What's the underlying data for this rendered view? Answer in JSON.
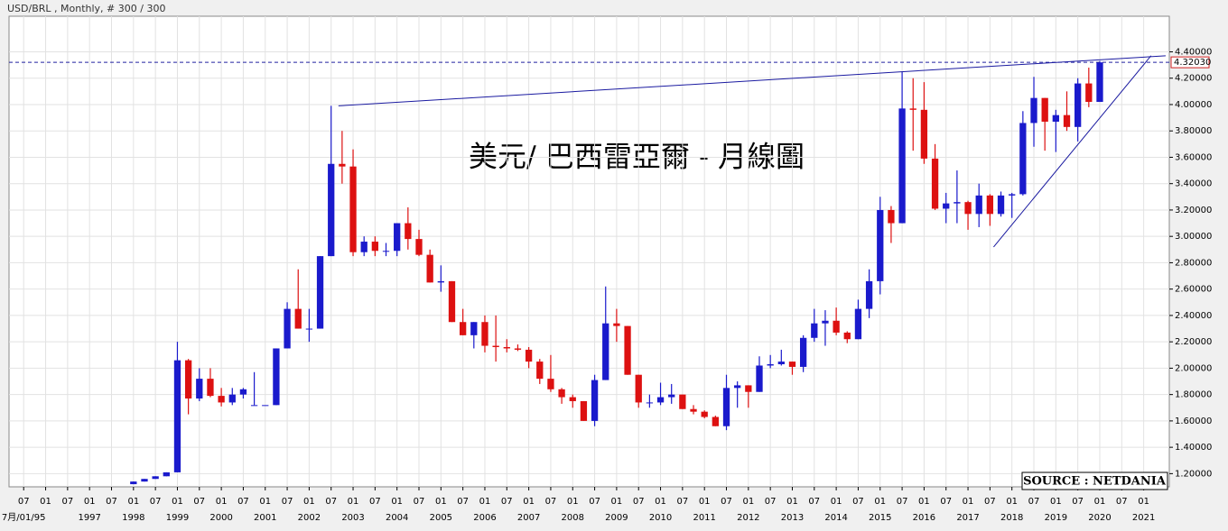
{
  "chart_data": {
    "type": "candlestick",
    "header": "USD/BRL , Monthly, # 300 / 300",
    "title": "美元/ 巴西雷亞爾 - 月線圖",
    "source": "SOURCE : NETDANIA",
    "up_color": "#1a1acc",
    "down_color": "#dd1111",
    "x": [
      "1998-01",
      "1998-04",
      "1998-07",
      "1998-10",
      "1999-01",
      "1999-04",
      "1999-07",
      "1999-10",
      "2000-01",
      "2000-04",
      "2000-07",
      "2000-10",
      "2001-01",
      "2001-04",
      "2001-07",
      "2001-10",
      "2002-01",
      "2002-04",
      "2002-07",
      "2002-10",
      "2003-01",
      "2003-04",
      "2003-07",
      "2003-10",
      "2004-01",
      "2004-04",
      "2004-07",
      "2004-10",
      "2005-01",
      "2005-04",
      "2005-07",
      "2005-10",
      "2006-01",
      "2006-04",
      "2006-07",
      "2006-10",
      "2007-01",
      "2007-04",
      "2007-07",
      "2007-10",
      "2008-01",
      "2008-04",
      "2008-07",
      "2008-10",
      "2009-01",
      "2009-04",
      "2009-07",
      "2009-10",
      "2010-01",
      "2010-04",
      "2010-07",
      "2010-10",
      "2011-01",
      "2011-04",
      "2011-07",
      "2011-10",
      "2012-01",
      "2012-04",
      "2012-07",
      "2012-10",
      "2013-01",
      "2013-04",
      "2013-07",
      "2013-10",
      "2014-01",
      "2014-04",
      "2014-07",
      "2014-10",
      "2015-01",
      "2015-04",
      "2015-07",
      "2015-10",
      "2016-01",
      "2016-04",
      "2016-07",
      "2016-10",
      "2017-01",
      "2017-04",
      "2017-07",
      "2017-10",
      "2018-01",
      "2018-04",
      "2018-07",
      "2018-10",
      "2019-01",
      "2019-04",
      "2019-07",
      "2019-10",
      "2020-01"
    ],
    "open": [
      1.12,
      1.14,
      1.16,
      1.18,
      1.21,
      2.06,
      1.77,
      1.92,
      1.79,
      1.74,
      1.8,
      1.72,
      1.72,
      1.72,
      2.15,
      2.45,
      2.3,
      2.3,
      2.85,
      3.55,
      3.53,
      2.88,
      2.96,
      2.89,
      2.89,
      3.1,
      2.98,
      2.86,
      2.65,
      2.66,
      2.35,
      2.25,
      2.35,
      2.17,
      2.16,
      2.15,
      2.14,
      2.05,
      1.92,
      1.84,
      1.78,
      1.75,
      1.6,
      1.91,
      2.34,
      2.32,
      1.95,
      1.74,
      1.74,
      1.78,
      1.8,
      1.69,
      1.67,
      1.63,
      1.56,
      1.85,
      1.87,
      1.82,
      2.02,
      2.03,
      2.05,
      2.01,
      2.23,
      2.34,
      2.36,
      2.27,
      2.22,
      2.45,
      2.66,
      3.2,
      3.1,
      3.97,
      3.96,
      3.59,
      3.21,
      3.25,
      3.26,
      3.17,
      3.31,
      3.17,
      3.31,
      3.32,
      3.86,
      4.05,
      3.87,
      3.92,
      3.83,
      4.16,
      4.02
    ],
    "high": [
      1.14,
      1.16,
      1.18,
      1.21,
      2.2,
      2.07,
      2.0,
      2.0,
      1.85,
      1.85,
      1.85,
      1.97,
      1.72,
      2.15,
      2.5,
      2.75,
      2.45,
      2.85,
      3.99,
      3.8,
      3.66,
      3.0,
      3.0,
      2.95,
      3.1,
      3.22,
      3.05,
      2.9,
      2.78,
      2.66,
      2.45,
      2.35,
      2.4,
      2.4,
      2.22,
      2.18,
      2.16,
      2.07,
      2.1,
      1.85,
      1.8,
      1.75,
      1.95,
      2.62,
      2.45,
      2.32,
      1.95,
      1.8,
      1.89,
      1.88,
      1.8,
      1.72,
      1.68,
      1.64,
      1.95,
      1.9,
      1.87,
      2.09,
      2.1,
      2.14,
      2.05,
      2.25,
      2.45,
      2.44,
      2.46,
      2.28,
      2.52,
      2.75,
      3.3,
      3.23,
      4.25,
      4.2,
      4.17,
      3.7,
      3.33,
      3.5,
      3.27,
      3.4,
      3.32,
      3.34,
      3.33,
      3.95,
      4.21,
      4.05,
      3.96,
      4.1,
      4.2,
      4.28,
      4.33
    ],
    "low": [
      1.12,
      1.14,
      1.16,
      1.18,
      1.21,
      1.65,
      1.75,
      1.78,
      1.71,
      1.72,
      1.77,
      1.72,
      1.72,
      1.72,
      2.15,
      2.3,
      2.2,
      2.3,
      2.85,
      3.4,
      2.85,
      2.85,
      2.85,
      2.85,
      2.85,
      2.9,
      2.85,
      2.65,
      2.58,
      2.35,
      2.25,
      2.15,
      2.12,
      2.05,
      2.12,
      2.13,
      2.0,
      1.88,
      1.82,
      1.73,
      1.7,
      1.6,
      1.56,
      1.91,
      2.2,
      1.95,
      1.7,
      1.7,
      1.72,
      1.73,
      1.69,
      1.65,
      1.62,
      1.56,
      1.53,
      1.7,
      1.7,
      1.82,
      2.0,
      2.02,
      1.95,
      1.97,
      2.2,
      2.17,
      2.25,
      2.19,
      2.22,
      2.38,
      2.56,
      2.95,
      3.1,
      3.65,
      3.55,
      3.2,
      3.1,
      3.1,
      3.05,
      3.07,
      3.08,
      3.15,
      3.14,
      3.31,
      3.68,
      3.65,
      3.64,
      3.8,
      3.72,
      3.98,
      4.02
    ],
    "close": [
      1.14,
      1.16,
      1.18,
      1.21,
      2.06,
      1.77,
      1.92,
      1.79,
      1.74,
      1.8,
      1.84,
      1.72,
      1.72,
      2.15,
      2.45,
      2.3,
      2.3,
      2.85,
      3.55,
      3.53,
      2.88,
      2.96,
      2.89,
      2.89,
      3.1,
      2.98,
      2.86,
      2.65,
      2.66,
      2.35,
      2.25,
      2.35,
      2.17,
      2.16,
      2.15,
      2.14,
      2.05,
      1.92,
      1.84,
      1.78,
      1.75,
      1.6,
      1.91,
      2.34,
      2.32,
      1.95,
      1.74,
      1.74,
      1.78,
      1.8,
      1.69,
      1.67,
      1.63,
      1.56,
      1.85,
      1.87,
      1.82,
      2.02,
      2.03,
      2.05,
      2.01,
      2.23,
      2.34,
      2.36,
      2.27,
      2.22,
      2.45,
      2.66,
      3.2,
      3.1,
      3.97,
      3.96,
      3.59,
      3.21,
      3.25,
      3.26,
      3.17,
      3.31,
      3.17,
      3.31,
      3.32,
      3.86,
      4.05,
      3.87,
      3.92,
      3.83,
      4.16,
      4.02,
      4.32
    ],
    "xlim": [
      "1995-03",
      "2021-08"
    ],
    "ylim": [
      1.1,
      4.67
    ],
    "yticks": [
      {
        "value": 1.2,
        "label": "1.20000"
      },
      {
        "value": 1.4,
        "label": "1.40000"
      },
      {
        "value": 1.6,
        "label": "1.60000"
      },
      {
        "value": 1.8,
        "label": "1.80000"
      },
      {
        "value": 2.0,
        "label": "2.00000"
      },
      {
        "value": 2.2,
        "label": "2.20000"
      },
      {
        "value": 2.4,
        "label": "2.40000"
      },
      {
        "value": 2.6,
        "label": "2.60000"
      },
      {
        "value": 2.8,
        "label": "2.80000"
      },
      {
        "value": 3.0,
        "label": "3.00000"
      },
      {
        "value": 3.2,
        "label": "3.20000"
      },
      {
        "value": 3.4,
        "label": "3.40000"
      },
      {
        "value": 3.6,
        "label": "3.60000"
      },
      {
        "value": 3.8,
        "label": "3.80000"
      },
      {
        "value": 4.0,
        "label": "4.00000"
      },
      {
        "value": 4.2,
        "label": "4.20000"
      },
      {
        "value": 4.4,
        "label": "4.40000"
      }
    ],
    "xticks": [
      {
        "value": "1995-07",
        "label": "07"
      },
      {
        "value": "1996-01",
        "label": "01"
      },
      {
        "value": "1996-07",
        "label": "07"
      },
      {
        "value": "1997-01",
        "label": "01"
      },
      {
        "value": "1997-07",
        "label": "07"
      },
      {
        "value": "1998-01",
        "label": "01"
      },
      {
        "value": "1998-07",
        "label": "07"
      },
      {
        "value": "1999-01",
        "label": "01"
      },
      {
        "value": "1999-07",
        "label": "07"
      },
      {
        "value": "2000-01",
        "label": "01"
      },
      {
        "value": "2000-07",
        "label": "07"
      },
      {
        "value": "2001-01",
        "label": "01"
      },
      {
        "value": "2001-07",
        "label": "07"
      },
      {
        "value": "2002-01",
        "label": "01"
      },
      {
        "value": "2002-07",
        "label": "07"
      },
      {
        "value": "2003-01",
        "label": "01"
      },
      {
        "value": "2003-07",
        "label": "07"
      },
      {
        "value": "2004-01",
        "label": "01"
      },
      {
        "value": "2004-07",
        "label": "07"
      },
      {
        "value": "2005-01",
        "label": "01"
      },
      {
        "value": "2005-07",
        "label": "07"
      },
      {
        "value": "2006-01",
        "label": "01"
      },
      {
        "value": "2006-07",
        "label": "07"
      },
      {
        "value": "2007-01",
        "label": "01"
      },
      {
        "value": "2007-07",
        "label": "07"
      },
      {
        "value": "2008-01",
        "label": "01"
      },
      {
        "value": "2008-07",
        "label": "07"
      },
      {
        "value": "2009-01",
        "label": "01"
      },
      {
        "value": "2009-07",
        "label": "07"
      },
      {
        "value": "2010-01",
        "label": "01"
      },
      {
        "value": "2010-07",
        "label": "07"
      },
      {
        "value": "2011-01",
        "label": "01"
      },
      {
        "value": "2011-07",
        "label": "07"
      },
      {
        "value": "2012-01",
        "label": "01"
      },
      {
        "value": "2012-07",
        "label": "07"
      },
      {
        "value": "2013-01",
        "label": "01"
      },
      {
        "value": "2013-07",
        "label": "07"
      },
      {
        "value": "2014-01",
        "label": "01"
      },
      {
        "value": "2014-07",
        "label": "07"
      },
      {
        "value": "2015-01",
        "label": "01"
      },
      {
        "value": "2015-07",
        "label": "07"
      },
      {
        "value": "2016-01",
        "label": "01"
      },
      {
        "value": "2016-07",
        "label": "07"
      },
      {
        "value": "2017-01",
        "label": "01"
      },
      {
        "value": "2017-07",
        "label": "07"
      },
      {
        "value": "2018-01",
        "label": "01"
      },
      {
        "value": "2018-07",
        "label": "07"
      },
      {
        "value": "2019-01",
        "label": "01"
      },
      {
        "value": "2019-07",
        "label": "07"
      },
      {
        "value": "2020-01",
        "label": "01"
      },
      {
        "value": "2020-07",
        "label": "07"
      },
      {
        "value": "2021-01",
        "label": "01"
      }
    ],
    "year_labels": [
      {
        "value": "1995-07",
        "label": "7月/01/95"
      },
      {
        "value": "1997-01",
        "label": "1997"
      },
      {
        "value": "1998-01",
        "label": "1998"
      },
      {
        "value": "1999-01",
        "label": "1999"
      },
      {
        "value": "2000-01",
        "label": "2000"
      },
      {
        "value": "2001-01",
        "label": "2001"
      },
      {
        "value": "2002-01",
        "label": "2002"
      },
      {
        "value": "2003-01",
        "label": "2003"
      },
      {
        "value": "2004-01",
        "label": "2004"
      },
      {
        "value": "2005-01",
        "label": "2005"
      },
      {
        "value": "2006-01",
        "label": "2006"
      },
      {
        "value": "2007-01",
        "label": "2007"
      },
      {
        "value": "2008-01",
        "label": "2008"
      },
      {
        "value": "2009-01",
        "label": "2009"
      },
      {
        "value": "2010-01",
        "label": "2010"
      },
      {
        "value": "2011-01",
        "label": "2011"
      },
      {
        "value": "2012-01",
        "label": "2012"
      },
      {
        "value": "2013-01",
        "label": "2013"
      },
      {
        "value": "2014-01",
        "label": "2014"
      },
      {
        "value": "2015-01",
        "label": "2015"
      },
      {
        "value": "2016-01",
        "label": "2016"
      },
      {
        "value": "2017-01",
        "label": "2017"
      },
      {
        "value": "2018-01",
        "label": "2018"
      },
      {
        "value": "2019-01",
        "label": "2019"
      },
      {
        "value": "2020-01",
        "label": "2020"
      },
      {
        "value": "2021-01",
        "label": "2021"
      }
    ],
    "level": {
      "value": 4.3203,
      "label": "4.32030"
    },
    "trendlines": [
      {
        "x": [
          "2002-09",
          "2021-07"
        ],
        "y": [
          3.99,
          4.37
        ]
      },
      {
        "x": [
          "2017-08",
          "2021-03"
        ],
        "y": [
          2.92,
          4.37
        ]
      }
    ],
    "grid": true
  }
}
